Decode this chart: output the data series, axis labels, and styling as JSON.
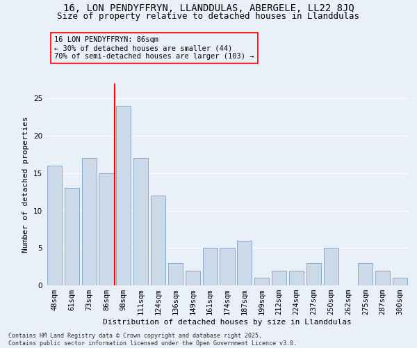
{
  "title1": "16, LON PENDYFFRYN, LLANDDULAS, ABERGELE, LL22 8JQ",
  "title2": "Size of property relative to detached houses in Llanddulas",
  "xlabel": "Distribution of detached houses by size in Llanddulas",
  "ylabel": "Number of detached properties",
  "footer1": "Contains HM Land Registry data © Crown copyright and database right 2025.",
  "footer2": "Contains public sector information licensed under the Open Government Licence v3.0.",
  "categories": [
    "48sqm",
    "61sqm",
    "73sqm",
    "86sqm",
    "98sqm",
    "111sqm",
    "124sqm",
    "136sqm",
    "149sqm",
    "161sqm",
    "174sqm",
    "187sqm",
    "199sqm",
    "212sqm",
    "224sqm",
    "237sqm",
    "250sqm",
    "262sqm",
    "275sqm",
    "287sqm",
    "300sqm"
  ],
  "values": [
    16,
    13,
    17,
    15,
    24,
    17,
    12,
    3,
    2,
    5,
    5,
    6,
    1,
    2,
    2,
    3,
    5,
    0,
    3,
    2,
    1
  ],
  "bar_color": "#ccd9e8",
  "bar_edge_color": "#8aaac8",
  "red_line_x": 3.5,
  "annotation_title": "16 LON PENDYFFRYN: 86sqm",
  "annotation_line1": "← 30% of detached houses are smaller (44)",
  "annotation_line2": "70% of semi-detached houses are larger (103) →",
  "ylim": [
    0,
    27
  ],
  "yticks": [
    0,
    5,
    10,
    15,
    20,
    25
  ],
  "bg_color": "#eaf0f8",
  "grid_color": "#ffffff",
  "title_fontsize": 10,
  "subtitle_fontsize": 9,
  "annot_fontsize": 7.5,
  "axis_label_fontsize": 8,
  "tick_fontsize": 7.5,
  "footer_fontsize": 6
}
